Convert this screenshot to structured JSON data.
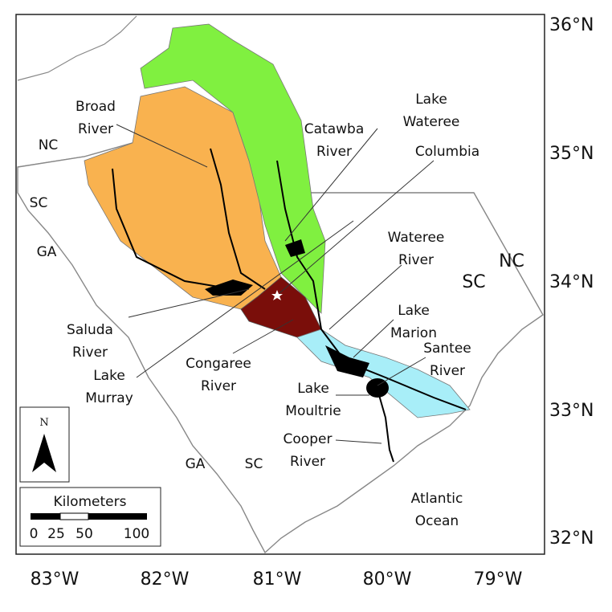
{
  "latitude_labels": [
    "36°N",
    "35°N",
    "34°N",
    "33°N",
    "32°N"
  ],
  "longitude_labels": [
    "83°W",
    "82°W",
    "81°W",
    "80°W",
    "79°W"
  ],
  "place_labels": [
    [
      "Broad",
      "River"
    ],
    [
      "NC"
    ],
    [
      "SC"
    ],
    [
      "GA"
    ],
    [
      "Catawba",
      "River"
    ],
    [
      "Lake",
      "Wateree"
    ],
    [
      "Columbia"
    ],
    [
      "Wateree",
      "River"
    ],
    [
      "NC"
    ],
    [
      "SC"
    ],
    [
      "Saluda",
      "River"
    ],
    [
      "Lake",
      "Murray"
    ],
    [
      "Congaree",
      "River"
    ],
    [
      "Lake",
      "Marion"
    ],
    [
      "Santee",
      "River"
    ],
    [
      "Lake",
      "Moultrie"
    ],
    [
      "Cooper",
      "River"
    ],
    [
      "GA"
    ],
    [
      "SC"
    ],
    [
      "Atlantic",
      "Ocean"
    ]
  ],
  "north_arrow": "N",
  "scale_bar": {
    "title": "Kilometers",
    "ticks": [
      0,
      25,
      50,
      100
    ]
  }
}
